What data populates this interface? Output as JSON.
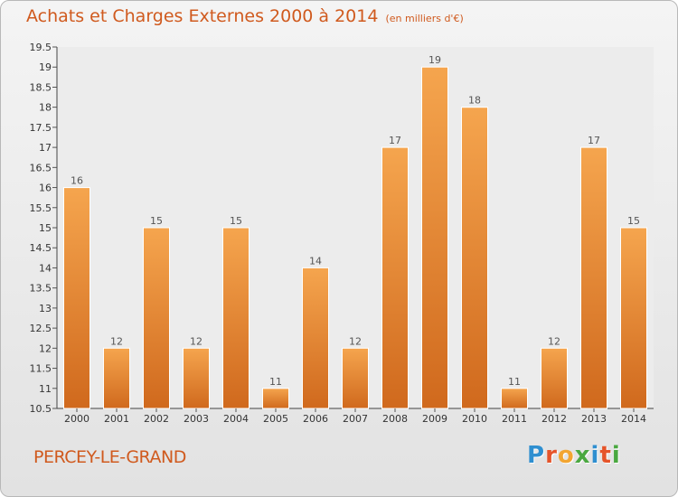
{
  "header": {
    "title": "Achats et Charges Externes 2000 à 2014",
    "subtitle": "(en milliers d'€)"
  },
  "footer": {
    "location": "PERCEY-LE-GRAND",
    "logo": "Proxiti"
  },
  "colors": {
    "bar_light": "#f5a54e",
    "bar_dark": "#d0691d",
    "accent": "#d05a1e",
    "logo_letters": [
      "#2f8fd0",
      "#e5542a",
      "#f2a531",
      "#4aa840",
      "#2f8fd0",
      "#e5542a",
      "#4aa840"
    ]
  },
  "chart_data": {
    "type": "bar",
    "title": "Achats et Charges Externes 2000 à 2014",
    "subtitle": "(en milliers d'€)",
    "xlabel": "",
    "ylabel": "",
    "categories": [
      "2000",
      "2001",
      "2002",
      "2003",
      "2004",
      "2005",
      "2006",
      "2007",
      "2008",
      "2009",
      "2010",
      "2011",
      "2012",
      "2013",
      "2014"
    ],
    "values": [
      16,
      12,
      15,
      12,
      15,
      11,
      14,
      12,
      17,
      19,
      18,
      11,
      12,
      17,
      15
    ],
    "ylim": [
      10.5,
      19.5
    ],
    "yticks": [
      "10.5",
      "11",
      "11.5",
      "12",
      "12.5",
      "13",
      "13.5",
      "14",
      "14.5",
      "15",
      "15.5",
      "16",
      "16.5",
      "17",
      "17.5",
      "18",
      "18.5",
      "19",
      "19.5"
    ],
    "grid": false,
    "data_labels": true
  }
}
